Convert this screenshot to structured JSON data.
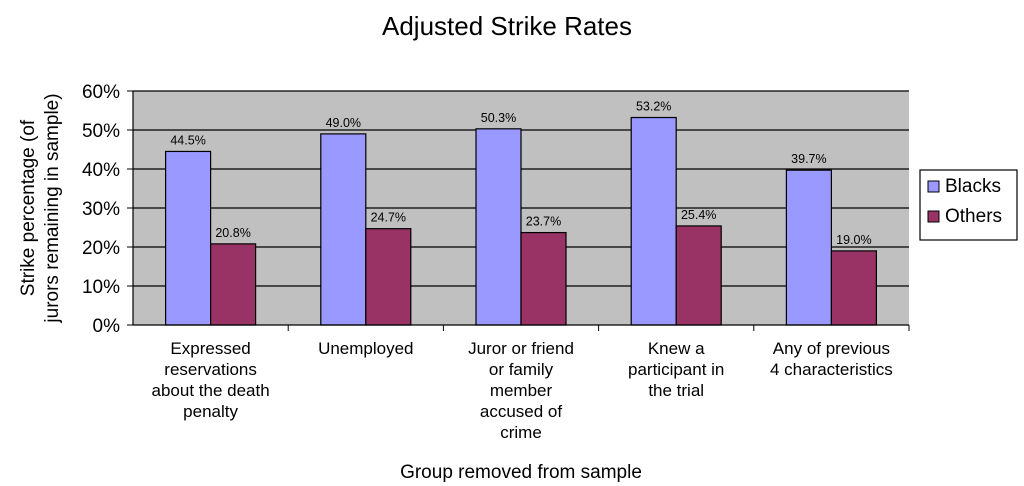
{
  "chart_data": {
    "type": "bar",
    "title": "Adjusted Strike Rates",
    "xlabel": "Group removed from sample",
    "ylabel": [
      "Strike percentage (of",
      "jurors remaining in sample)"
    ],
    "ylim": [
      0,
      60
    ],
    "yticks": [
      0,
      10,
      20,
      30,
      40,
      50,
      60
    ],
    "ytick_labels": [
      "0%",
      "10%",
      "20%",
      "30%",
      "40%",
      "50%",
      "60%"
    ],
    "grid": true,
    "legend": "right",
    "categories": [
      [
        "Expressed",
        "reservations",
        "about the death",
        "penalty"
      ],
      [
        "Unemployed"
      ],
      [
        "Juror or friend",
        "or family",
        "member",
        "accused of",
        "crime"
      ],
      [
        "Knew a",
        "participant in",
        "the trial"
      ],
      [
        "Any of previous",
        "4 characteristics"
      ]
    ],
    "series": [
      {
        "name": "Blacks",
        "color": "#9999ff",
        "values": [
          44.5,
          49.0,
          50.3,
          53.2,
          39.7
        ],
        "labels": [
          "44.5%",
          "49.0%",
          "50.3%",
          "53.2%",
          "39.7%"
        ]
      },
      {
        "name": "Others",
        "color": "#993366",
        "values": [
          20.8,
          24.7,
          23.7,
          25.4,
          19.0
        ],
        "labels": [
          "20.8%",
          "24.7%",
          "23.7%",
          "25.4%",
          "19.0%"
        ]
      }
    ],
    "plot_background": "#c0c0c0"
  }
}
